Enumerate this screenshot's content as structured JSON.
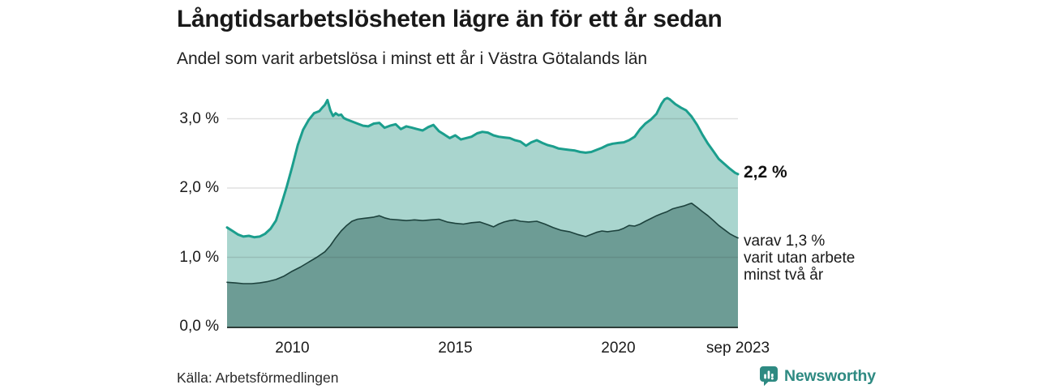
{
  "header": {
    "title": "Långtidsarbetslösheten lägre än för ett år sedan",
    "subtitle": "Andel som varit arbetslösa i minst ett år i Västra Götalands län"
  },
  "footer": {
    "source": "Källa: Arbetsförmedlingen",
    "brand": "Newsworthy"
  },
  "colors": {
    "total_fill": "#a9d5ce",
    "total_line": "#1b9e8d",
    "subset_fill": "#6d9c95",
    "subset_line": "#1d423d",
    "axis_line": "#2e3d39",
    "grid": "#e0e0e0",
    "accent": "#2e8a82"
  },
  "chart_data": {
    "type": "area",
    "title": "Långtidsarbetslösheten lägre än för ett år sedan",
    "subtitle": "Andel som varit arbetslösa i minst ett år i Västra Götalands län",
    "unit": "%",
    "x_range": [
      2008.0,
      2023.67
    ],
    "y_range": [
      0,
      3.5
    ],
    "grid_values": [
      1,
      2,
      3
    ],
    "y_tick_labels": [
      "0,0 %",
      "1,0 %",
      "2,0 %",
      "3,0 %"
    ],
    "y_tick_values": [
      0,
      1,
      2,
      3
    ],
    "x_ticks": [
      {
        "year": 2010,
        "label": "2010"
      },
      {
        "year": 2015,
        "label": "2015"
      },
      {
        "year": 2020,
        "label": "2020"
      },
      {
        "year": 2023.67,
        "label": "sep 2023"
      }
    ],
    "legend_position": "none",
    "grid": true,
    "end_labels": {
      "total": "2,2 %",
      "note_lines": [
        "varav 1,3 %",
        "varit utan arbete",
        "minst två år"
      ]
    },
    "series": [
      {
        "id": "total",
        "name": "Andel som varit arbetslösa i minst ett år",
        "end_value": 2.2,
        "fill": "#a9d5ce",
        "line": "#1b9e8d",
        "line_width": 3,
        "points": [
          [
            2008.0,
            1.43
          ],
          [
            2008.17,
            1.38
          ],
          [
            2008.33,
            1.33
          ],
          [
            2008.5,
            1.3
          ],
          [
            2008.67,
            1.31
          ],
          [
            2008.83,
            1.29
          ],
          [
            2009.0,
            1.3
          ],
          [
            2009.17,
            1.34
          ],
          [
            2009.33,
            1.41
          ],
          [
            2009.5,
            1.53
          ],
          [
            2009.67,
            1.77
          ],
          [
            2009.83,
            2.02
          ],
          [
            2010.0,
            2.31
          ],
          [
            2010.17,
            2.62
          ],
          [
            2010.33,
            2.84
          ],
          [
            2010.5,
            2.98
          ],
          [
            2010.67,
            3.08
          ],
          [
            2010.83,
            3.11
          ],
          [
            2010.92,
            3.16
          ],
          [
            2011.0,
            3.2
          ],
          [
            2011.08,
            3.27
          ],
          [
            2011.17,
            3.12
          ],
          [
            2011.25,
            3.04
          ],
          [
            2011.33,
            3.08
          ],
          [
            2011.42,
            3.05
          ],
          [
            2011.5,
            3.06
          ],
          [
            2011.58,
            3.01
          ],
          [
            2011.67,
            2.99
          ],
          [
            2011.83,
            2.96
          ],
          [
            2012.0,
            2.93
          ],
          [
            2012.17,
            2.9
          ],
          [
            2012.33,
            2.89
          ],
          [
            2012.5,
            2.93
          ],
          [
            2012.67,
            2.94
          ],
          [
            2012.83,
            2.87
          ],
          [
            2013.0,
            2.9
          ],
          [
            2013.17,
            2.92
          ],
          [
            2013.33,
            2.85
          ],
          [
            2013.5,
            2.89
          ],
          [
            2013.67,
            2.87
          ],
          [
            2013.83,
            2.85
          ],
          [
            2014.0,
            2.83
          ],
          [
            2014.17,
            2.88
          ],
          [
            2014.33,
            2.91
          ],
          [
            2014.5,
            2.82
          ],
          [
            2014.67,
            2.77
          ],
          [
            2014.83,
            2.72
          ],
          [
            2015.0,
            2.76
          ],
          [
            2015.17,
            2.7
          ],
          [
            2015.33,
            2.72
          ],
          [
            2015.5,
            2.74
          ],
          [
            2015.67,
            2.79
          ],
          [
            2015.83,
            2.81
          ],
          [
            2016.0,
            2.8
          ],
          [
            2016.17,
            2.76
          ],
          [
            2016.33,
            2.74
          ],
          [
            2016.5,
            2.73
          ],
          [
            2016.67,
            2.72
          ],
          [
            2016.83,
            2.69
          ],
          [
            2017.0,
            2.67
          ],
          [
            2017.17,
            2.61
          ],
          [
            2017.33,
            2.66
          ],
          [
            2017.5,
            2.69
          ],
          [
            2017.67,
            2.65
          ],
          [
            2017.83,
            2.62
          ],
          [
            2018.0,
            2.6
          ],
          [
            2018.17,
            2.57
          ],
          [
            2018.33,
            2.56
          ],
          [
            2018.5,
            2.55
          ],
          [
            2018.67,
            2.54
          ],
          [
            2018.83,
            2.52
          ],
          [
            2019.0,
            2.51
          ],
          [
            2019.17,
            2.52
          ],
          [
            2019.33,
            2.55
          ],
          [
            2019.5,
            2.58
          ],
          [
            2019.67,
            2.62
          ],
          [
            2019.83,
            2.64
          ],
          [
            2020.0,
            2.65
          ],
          [
            2020.17,
            2.66
          ],
          [
            2020.33,
            2.69
          ],
          [
            2020.5,
            2.74
          ],
          [
            2020.67,
            2.85
          ],
          [
            2020.83,
            2.93
          ],
          [
            2021.0,
            2.99
          ],
          [
            2021.17,
            3.07
          ],
          [
            2021.33,
            3.22
          ],
          [
            2021.42,
            3.28
          ],
          [
            2021.5,
            3.3
          ],
          [
            2021.58,
            3.28
          ],
          [
            2021.75,
            3.21
          ],
          [
            2021.92,
            3.16
          ],
          [
            2022.08,
            3.12
          ],
          [
            2022.25,
            3.03
          ],
          [
            2022.42,
            2.91
          ],
          [
            2022.58,
            2.77
          ],
          [
            2022.75,
            2.64
          ],
          [
            2022.92,
            2.53
          ],
          [
            2023.08,
            2.42
          ],
          [
            2023.25,
            2.35
          ],
          [
            2023.42,
            2.28
          ],
          [
            2023.58,
            2.22
          ],
          [
            2023.67,
            2.2
          ]
        ]
      },
      {
        "id": "two-years",
        "name": "varav varit utan arbete minst två år",
        "end_value": 1.3,
        "fill": "#6d9c95",
        "line": "#1d423d",
        "line_width": 1.6,
        "points": [
          [
            2008.0,
            0.64
          ],
          [
            2008.25,
            0.63
          ],
          [
            2008.5,
            0.62
          ],
          [
            2008.75,
            0.62
          ],
          [
            2009.0,
            0.63
          ],
          [
            2009.25,
            0.65
          ],
          [
            2009.5,
            0.68
          ],
          [
            2009.75,
            0.73
          ],
          [
            2010.0,
            0.8
          ],
          [
            2010.25,
            0.86
          ],
          [
            2010.5,
            0.93
          ],
          [
            2010.75,
            1.0
          ],
          [
            2011.0,
            1.08
          ],
          [
            2011.17,
            1.17
          ],
          [
            2011.33,
            1.28
          ],
          [
            2011.5,
            1.38
          ],
          [
            2011.67,
            1.46
          ],
          [
            2011.83,
            1.52
          ],
          [
            2012.0,
            1.55
          ],
          [
            2012.17,
            1.56
          ],
          [
            2012.33,
            1.57
          ],
          [
            2012.5,
            1.58
          ],
          [
            2012.67,
            1.6
          ],
          [
            2012.83,
            1.57
          ],
          [
            2013.0,
            1.55
          ],
          [
            2013.25,
            1.54
          ],
          [
            2013.5,
            1.53
          ],
          [
            2013.75,
            1.54
          ],
          [
            2014.0,
            1.53
          ],
          [
            2014.25,
            1.54
          ],
          [
            2014.5,
            1.55
          ],
          [
            2014.75,
            1.51
          ],
          [
            2015.0,
            1.49
          ],
          [
            2015.25,
            1.48
          ],
          [
            2015.5,
            1.5
          ],
          [
            2015.75,
            1.51
          ],
          [
            2016.0,
            1.47
          ],
          [
            2016.17,
            1.44
          ],
          [
            2016.33,
            1.48
          ],
          [
            2016.5,
            1.51
          ],
          [
            2016.67,
            1.53
          ],
          [
            2016.83,
            1.54
          ],
          [
            2017.0,
            1.52
          ],
          [
            2017.25,
            1.51
          ],
          [
            2017.5,
            1.52
          ],
          [
            2017.75,
            1.48
          ],
          [
            2018.0,
            1.43
          ],
          [
            2018.25,
            1.39
          ],
          [
            2018.5,
            1.37
          ],
          [
            2018.75,
            1.33
          ],
          [
            2019.0,
            1.3
          ],
          [
            2019.17,
            1.33
          ],
          [
            2019.33,
            1.36
          ],
          [
            2019.5,
            1.38
          ],
          [
            2019.67,
            1.37
          ],
          [
            2019.83,
            1.38
          ],
          [
            2020.0,
            1.39
          ],
          [
            2020.17,
            1.42
          ],
          [
            2020.33,
            1.46
          ],
          [
            2020.5,
            1.45
          ],
          [
            2020.67,
            1.48
          ],
          [
            2020.83,
            1.52
          ],
          [
            2021.0,
            1.56
          ],
          [
            2021.17,
            1.6
          ],
          [
            2021.33,
            1.63
          ],
          [
            2021.5,
            1.66
          ],
          [
            2021.67,
            1.7
          ],
          [
            2021.83,
            1.72
          ],
          [
            2022.0,
            1.74
          ],
          [
            2022.17,
            1.77
          ],
          [
            2022.25,
            1.78
          ],
          [
            2022.42,
            1.72
          ],
          [
            2022.58,
            1.66
          ],
          [
            2022.75,
            1.6
          ],
          [
            2022.92,
            1.53
          ],
          [
            2023.08,
            1.46
          ],
          [
            2023.25,
            1.4
          ],
          [
            2023.42,
            1.34
          ],
          [
            2023.58,
            1.3
          ],
          [
            2023.67,
            1.28
          ]
        ]
      }
    ]
  }
}
